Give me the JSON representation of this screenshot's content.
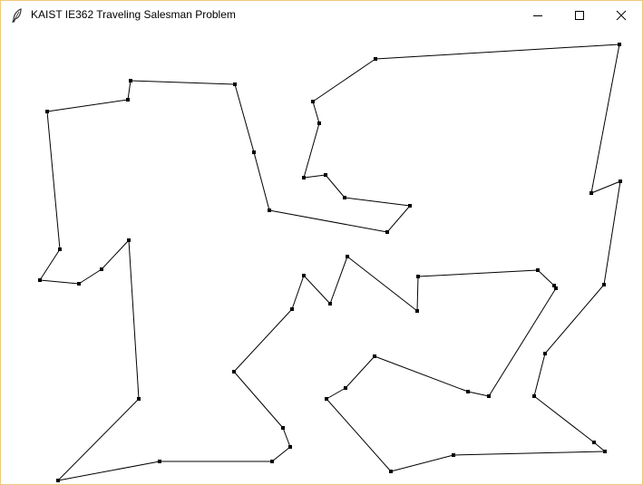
{
  "window": {
    "title": "KAIST IE362 Traveling Salesman Problem",
    "app_icon": "feather-icon",
    "controls": [
      "minimize-icon",
      "maximize-icon",
      "close-icon"
    ]
  },
  "canvas": {
    "line_color": "#000000",
    "point_color": "#000000"
  }
}
